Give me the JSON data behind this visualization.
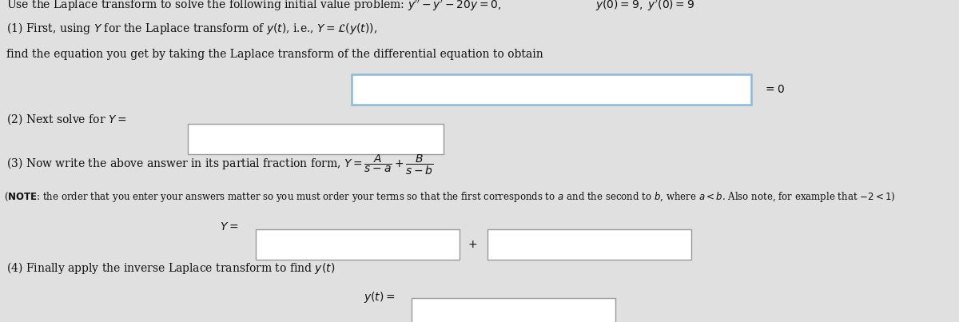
{
  "bg_color": "#e0e0e0",
  "box_fill": "#ffffff",
  "text_color": "#111111",
  "title_line": "Use the Laplace transform to solve the following initial value problem: $y'' - y' - 20y = 0,$",
  "title_right": "$y(0) = 9,\\ y'(0) = 9$",
  "line1a": "(1) First, using $Y$ for the Laplace transform of $y(t)$, i.e., $Y = \\mathcal{L}(y(t))$,",
  "line1b": "find the equation you get by taking the Laplace transform of the differential equation to obtain",
  "line2_pre": "(2) Next solve for $Y =$",
  "line3": "(3) Now write the above answer in its partial fraction form, $Y = \\dfrac{A}{s-a} + \\dfrac{B}{s-b}$",
  "note_bold": "(NOTE",
  "note_rest": ": the order that you enter your answers matter so you must order your terms so that the first corresponds to $a$ and the second to $b$, where $a < b$. Also note, for example that $-2 < 1$)",
  "line4": "(4) Finally apply the inverse Laplace transform to find $y(t)$",
  "eq0": "$= 0$",
  "Y_eq": "$Y =$",
  "plus": "$+$",
  "yt_eq": "$y(t) =$"
}
